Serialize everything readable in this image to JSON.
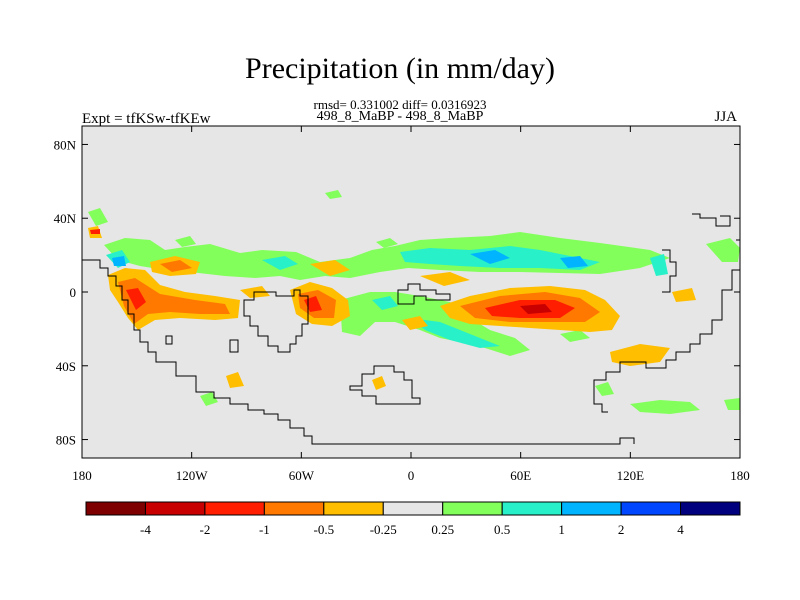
{
  "header": {
    "title": "Precipitation (in mm/day)",
    "stats": "rmsd= 0.331002 diff= 0.0316923",
    "subtitle": "498_8_MaBP - 498_8_MaBP",
    "expt": "Expt = tfKSw-tfKEw",
    "season": "JJA"
  },
  "map": {
    "background_color": "#e6e6e6",
    "lon_range": [
      -180,
      180
    ],
    "lat_range": [
      -90,
      90
    ],
    "x_ticks": [
      {
        "value": -180,
        "label": "180"
      },
      {
        "value": -120,
        "label": "120W"
      },
      {
        "value": -60,
        "label": "60W"
      },
      {
        "value": 0,
        "label": "0"
      },
      {
        "value": 60,
        "label": "60E"
      },
      {
        "value": 120,
        "label": "120E"
      },
      {
        "value": 180,
        "label": "180"
      }
    ],
    "y_ticks": [
      {
        "value": 80,
        "label": "80N"
      },
      {
        "value": 40,
        "label": "40N"
      },
      {
        "value": 0,
        "label": "0"
      },
      {
        "value": -40,
        "label": "40S"
      },
      {
        "value": -80,
        "label": "80S"
      }
    ]
  },
  "colorbar": {
    "colors": [
      "#7f0000",
      "#c80000",
      "#ff1e00",
      "#ff7800",
      "#ffbe00",
      "#e6e6e6",
      "#82ff5a",
      "#28f0c8",
      "#00b4ff",
      "#0046ff",
      "#00007f"
    ],
    "labels": [
      "-4",
      "-2",
      "-1",
      "-0.5",
      "-0.25",
      "0.25",
      "0.5",
      "1",
      "2",
      "4"
    ]
  }
}
